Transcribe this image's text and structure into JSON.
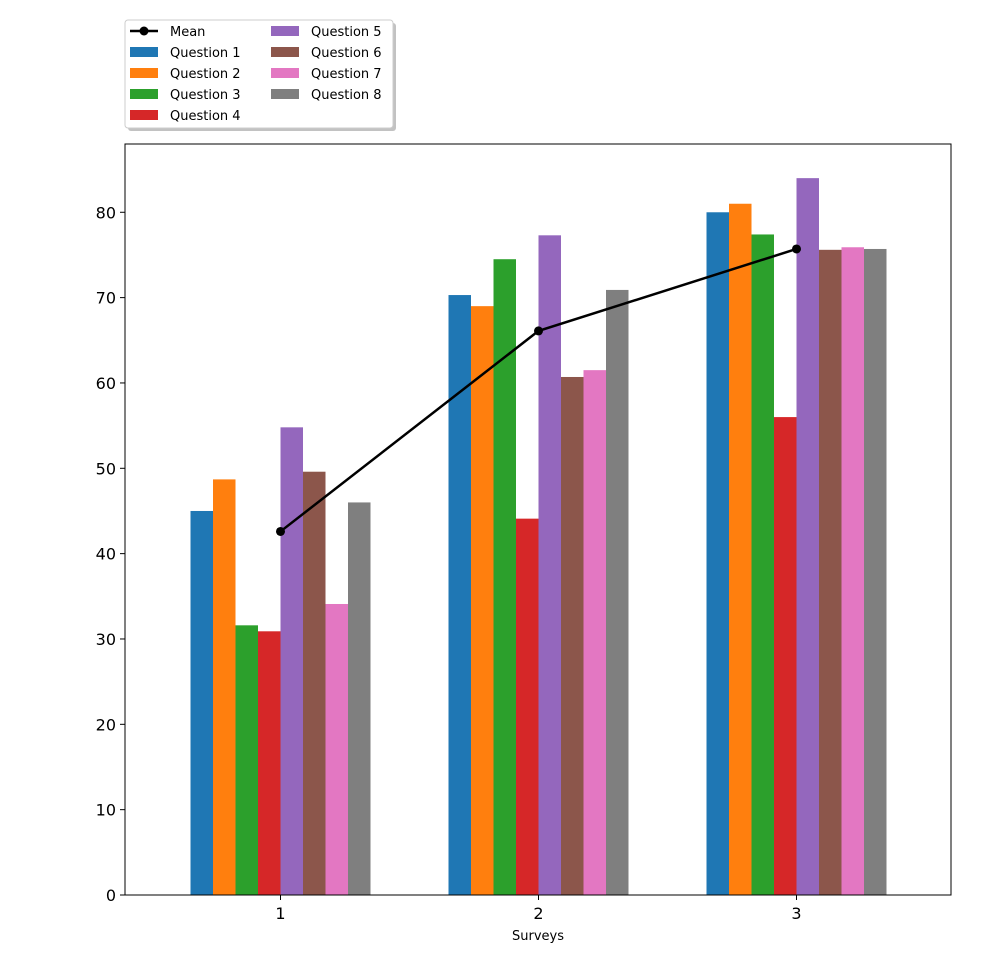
{
  "chart_data": {
    "type": "bar",
    "title": "",
    "xlabel": "Surveys",
    "ylabel": "",
    "categories": [
      "1",
      "2",
      "3"
    ],
    "ylim": [
      0,
      88
    ],
    "yticks": [
      0,
      10,
      20,
      30,
      40,
      50,
      60,
      70,
      80
    ],
    "grid": false,
    "legend_position": "top-left, above plot",
    "series": [
      {
        "name": "Question 1",
        "color": "#1f77b4",
        "values": [
          45.0,
          70.3,
          80.0
        ]
      },
      {
        "name": "Question 2",
        "color": "#ff7f0e",
        "values": [
          48.7,
          69.0,
          81.0
        ]
      },
      {
        "name": "Question 3",
        "color": "#2ca02c",
        "values": [
          31.6,
          74.5,
          77.4
        ]
      },
      {
        "name": "Question 4",
        "color": "#d62728",
        "values": [
          30.9,
          44.1,
          56.0
        ]
      },
      {
        "name": "Question 5",
        "color": "#9467bd",
        "values": [
          54.8,
          77.3,
          84.0
        ]
      },
      {
        "name": "Question 6",
        "color": "#8c564b",
        "values": [
          49.6,
          60.7,
          75.6
        ]
      },
      {
        "name": "Question 7",
        "color": "#e377c2",
        "values": [
          34.1,
          61.5,
          75.9
        ]
      },
      {
        "name": "Question 8",
        "color": "#7f7f7f",
        "values": [
          46.0,
          70.9,
          75.7
        ]
      }
    ],
    "line_series": {
      "name": "Mean",
      "color": "#000000",
      "values": [
        42.6,
        66.1,
        75.7
      ]
    },
    "legend_entries": [
      "Mean",
      "Question 1",
      "Question 2",
      "Question 3",
      "Question 4",
      "Question 5",
      "Question 6",
      "Question 7",
      "Question 8"
    ]
  }
}
